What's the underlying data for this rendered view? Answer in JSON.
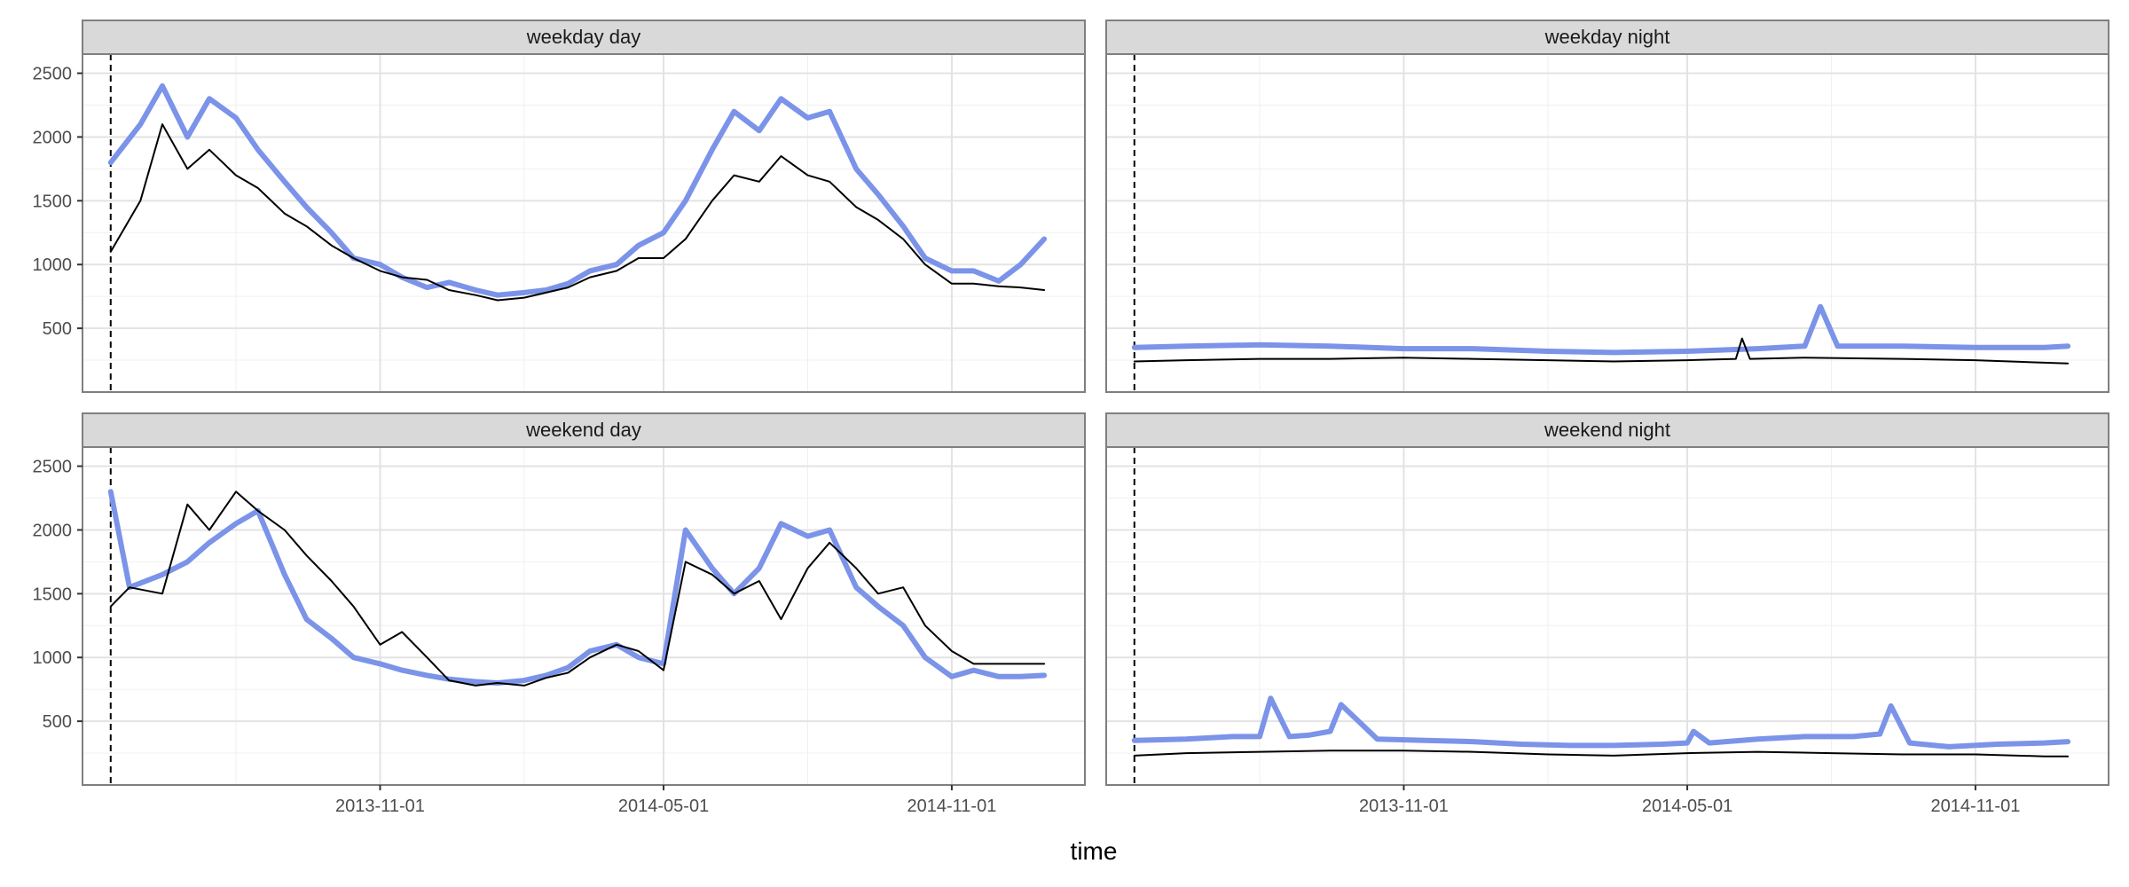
{
  "chart_data": {
    "type": "line",
    "layout": "facet-grid 2x2, shared axes",
    "xlabel": "time",
    "ylabel": "",
    "x_ticks": [
      "2013-11-01",
      "2014-05-01",
      "2014-11-01"
    ],
    "x_range": [
      "2013-04-25",
      "2015-01-25"
    ],
    "y_ticks": [
      500,
      1000,
      1500,
      2000,
      2500
    ],
    "ylim": [
      0,
      2650
    ],
    "vertical_reference_line": {
      "date": "2013-05-13",
      "style": "dashed"
    },
    "series_styles": [
      {
        "color": "#7b93e8",
        "width": "thick"
      },
      {
        "color": "#000000",
        "width": "thin"
      }
    ],
    "grid": true,
    "legend": "none",
    "panels": [
      {
        "label": "weekday day",
        "series": [
          {
            "x": [
              "2013-05-13",
              "2013-06-01",
              "2013-06-15",
              "2013-07-01",
              "2013-07-15",
              "2013-08-01",
              "2013-08-15",
              "2013-09-01",
              "2013-09-15",
              "2013-10-01",
              "2013-10-15",
              "2013-11-01",
              "2013-11-15",
              "2013-12-01",
              "2013-12-15",
              "2014-01-01",
              "2014-01-15",
              "2014-02-01",
              "2014-02-15",
              "2014-03-01",
              "2014-03-15",
              "2014-04-01",
              "2014-04-15",
              "2014-05-01",
              "2014-05-15",
              "2014-06-01",
              "2014-06-15",
              "2014-07-01",
              "2014-07-15",
              "2014-08-01",
              "2014-08-15",
              "2014-09-01",
              "2014-09-15",
              "2014-10-01",
              "2014-10-15",
              "2014-11-01",
              "2014-11-15",
              "2014-12-01",
              "2014-12-15",
              "2014-12-30"
            ],
            "values": [
              1800,
              2100,
              2400,
              2000,
              2300,
              2150,
              1900,
              1650,
              1450,
              1250,
              1050,
              1000,
              900,
              820,
              860,
              800,
              760,
              780,
              800,
              850,
              950,
              1000,
              1150,
              1250,
              1500,
              1900,
              2200,
              2050,
              2300,
              2150,
              2200,
              1750,
              1550,
              1300,
              1050,
              950,
              950,
              870,
              1000,
              1200
            ]
          },
          {
            "x": [
              "2013-05-13",
              "2013-06-01",
              "2013-06-15",
              "2013-07-01",
              "2013-07-15",
              "2013-08-01",
              "2013-08-15",
              "2013-09-01",
              "2013-09-15",
              "2013-10-01",
              "2013-10-15",
              "2013-11-01",
              "2013-11-15",
              "2013-12-01",
              "2013-12-15",
              "2014-01-01",
              "2014-01-15",
              "2014-02-01",
              "2014-02-15",
              "2014-03-01",
              "2014-03-15",
              "2014-04-01",
              "2014-04-15",
              "2014-05-01",
              "2014-05-15",
              "2014-06-01",
              "2014-06-15",
              "2014-07-01",
              "2014-07-15",
              "2014-08-01",
              "2014-08-15",
              "2014-09-01",
              "2014-09-15",
              "2014-10-01",
              "2014-10-15",
              "2014-11-01",
              "2014-11-15",
              "2014-12-01",
              "2014-12-15",
              "2014-12-30"
            ],
            "values": [
              1100,
              1500,
              2100,
              1750,
              1900,
              1700,
              1600,
              1400,
              1300,
              1150,
              1050,
              950,
              900,
              880,
              800,
              760,
              720,
              740,
              780,
              820,
              900,
              950,
              1050,
              1050,
              1200,
              1500,
              1700,
              1650,
              1850,
              1700,
              1650,
              1450,
              1350,
              1200,
              1000,
              850,
              850,
              830,
              820,
              800
            ]
          }
        ]
      },
      {
        "label": "weekday night",
        "series": [
          {
            "x": [
              "2013-05-13",
              "2013-06-15",
              "2013-08-01",
              "2013-09-15",
              "2013-11-01",
              "2013-12-15",
              "2014-02-01",
              "2014-03-15",
              "2014-05-01",
              "2014-06-15",
              "2014-07-15",
              "2014-07-25",
              "2014-08-05",
              "2014-09-15",
              "2014-11-01",
              "2014-12-15",
              "2014-12-30"
            ],
            "values": [
              350,
              360,
              370,
              360,
              340,
              340,
              320,
              310,
              320,
              340,
              360,
              670,
              360,
              360,
              350,
              350,
              360
            ]
          },
          {
            "x": [
              "2013-05-13",
              "2013-06-15",
              "2013-08-01",
              "2013-09-15",
              "2013-11-01",
              "2013-12-15",
              "2014-02-01",
              "2014-03-15",
              "2014-05-01",
              "2014-06-01",
              "2014-06-05",
              "2014-06-10",
              "2014-07-15",
              "2014-09-15",
              "2014-11-01",
              "2014-12-15",
              "2014-12-30"
            ],
            "values": [
              240,
              250,
              260,
              260,
              270,
              260,
              250,
              240,
              250,
              260,
              420,
              260,
              270,
              260,
              250,
              230,
              225
            ]
          }
        ]
      },
      {
        "label": "weekend day",
        "series": [
          {
            "x": [
              "2013-05-13",
              "2013-05-25",
              "2013-06-15",
              "2013-07-01",
              "2013-07-15",
              "2013-08-01",
              "2013-08-15",
              "2013-09-01",
              "2013-09-15",
              "2013-10-01",
              "2013-10-15",
              "2013-11-01",
              "2013-11-15",
              "2013-12-01",
              "2013-12-15",
              "2014-01-01",
              "2014-01-15",
              "2014-02-01",
              "2014-02-15",
              "2014-03-01",
              "2014-03-15",
              "2014-04-01",
              "2014-04-15",
              "2014-05-01",
              "2014-05-15",
              "2014-06-01",
              "2014-06-15",
              "2014-07-01",
              "2014-07-15",
              "2014-08-01",
              "2014-08-15",
              "2014-09-01",
              "2014-09-15",
              "2014-10-01",
              "2014-10-15",
              "2014-11-01",
              "2014-11-15",
              "2014-12-01",
              "2014-12-15",
              "2014-12-30"
            ],
            "values": [
              2300,
              1550,
              1650,
              1750,
              1900,
              2050,
              2150,
              1650,
              1300,
              1150,
              1000,
              950,
              900,
              860,
              830,
              810,
              800,
              820,
              860,
              920,
              1050,
              1100,
              1000,
              950,
              2000,
              1700,
              1500,
              1700,
              2050,
              1950,
              2000,
              1550,
              1400,
              1250,
              1000,
              850,
              900,
              850,
              850,
              860
            ]
          },
          {
            "x": [
              "2013-05-13",
              "2013-05-25",
              "2013-06-15",
              "2013-07-01",
              "2013-07-15",
              "2013-08-01",
              "2013-08-15",
              "2013-09-01",
              "2013-09-15",
              "2013-10-01",
              "2013-10-15",
              "2013-11-01",
              "2013-11-15",
              "2013-12-01",
              "2013-12-15",
              "2014-01-01",
              "2014-01-15",
              "2014-02-01",
              "2014-02-15",
              "2014-03-01",
              "2014-03-15",
              "2014-04-01",
              "2014-04-15",
              "2014-05-01",
              "2014-05-15",
              "2014-06-01",
              "2014-06-15",
              "2014-07-01",
              "2014-07-15",
              "2014-08-01",
              "2014-08-15",
              "2014-09-01",
              "2014-09-15",
              "2014-10-01",
              "2014-10-15",
              "2014-11-01",
              "2014-11-15",
              "2014-12-01",
              "2014-12-15",
              "2014-12-30"
            ],
            "values": [
              1400,
              1550,
              1500,
              2200,
              2000,
              2300,
              2150,
              2000,
              1800,
              1600,
              1400,
              1100,
              1200,
              1000,
              820,
              780,
              800,
              780,
              840,
              880,
              1000,
              1100,
              1050,
              900,
              1750,
              1650,
              1500,
              1600,
              1300,
              1700,
              1900,
              1700,
              1500,
              1550,
              1250,
              1050,
              950,
              950,
              950,
              950
            ]
          }
        ]
      },
      {
        "label": "weekend night",
        "series": [
          {
            "x": [
              "2013-05-13",
              "2013-06-15",
              "2013-07-15",
              "2013-08-01",
              "2013-08-08",
              "2013-08-20",
              "2013-09-01",
              "2013-09-15",
              "2013-09-22",
              "2013-10-15",
              "2013-11-15",
              "2013-12-15",
              "2014-01-15",
              "2014-02-15",
              "2014-03-15",
              "2014-04-15",
              "2014-05-01",
              "2014-05-05",
              "2014-05-15",
              "2014-06-15",
              "2014-07-15",
              "2014-08-15",
              "2014-09-01",
              "2014-09-08",
              "2014-09-20",
              "2014-10-15",
              "2014-11-15",
              "2014-12-15",
              "2014-12-30"
            ],
            "values": [
              350,
              360,
              380,
              380,
              680,
              380,
              390,
              420,
              630,
              360,
              350,
              340,
              320,
              310,
              310,
              320,
              330,
              420,
              330,
              360,
              380,
              380,
              400,
              620,
              330,
              300,
              320,
              330,
              340
            ]
          },
          {
            "x": [
              "2013-05-13",
              "2013-06-15",
              "2013-08-01",
              "2013-09-15",
              "2013-11-01",
              "2013-12-15",
              "2014-02-01",
              "2014-03-15",
              "2014-05-01",
              "2014-06-15",
              "2014-08-01",
              "2014-09-15",
              "2014-11-01",
              "2014-12-15",
              "2014-12-30"
            ],
            "values": [
              230,
              250,
              260,
              270,
              270,
              260,
              240,
              230,
              250,
              260,
              250,
              240,
              240,
              225,
              225
            ]
          }
        ]
      }
    ]
  }
}
